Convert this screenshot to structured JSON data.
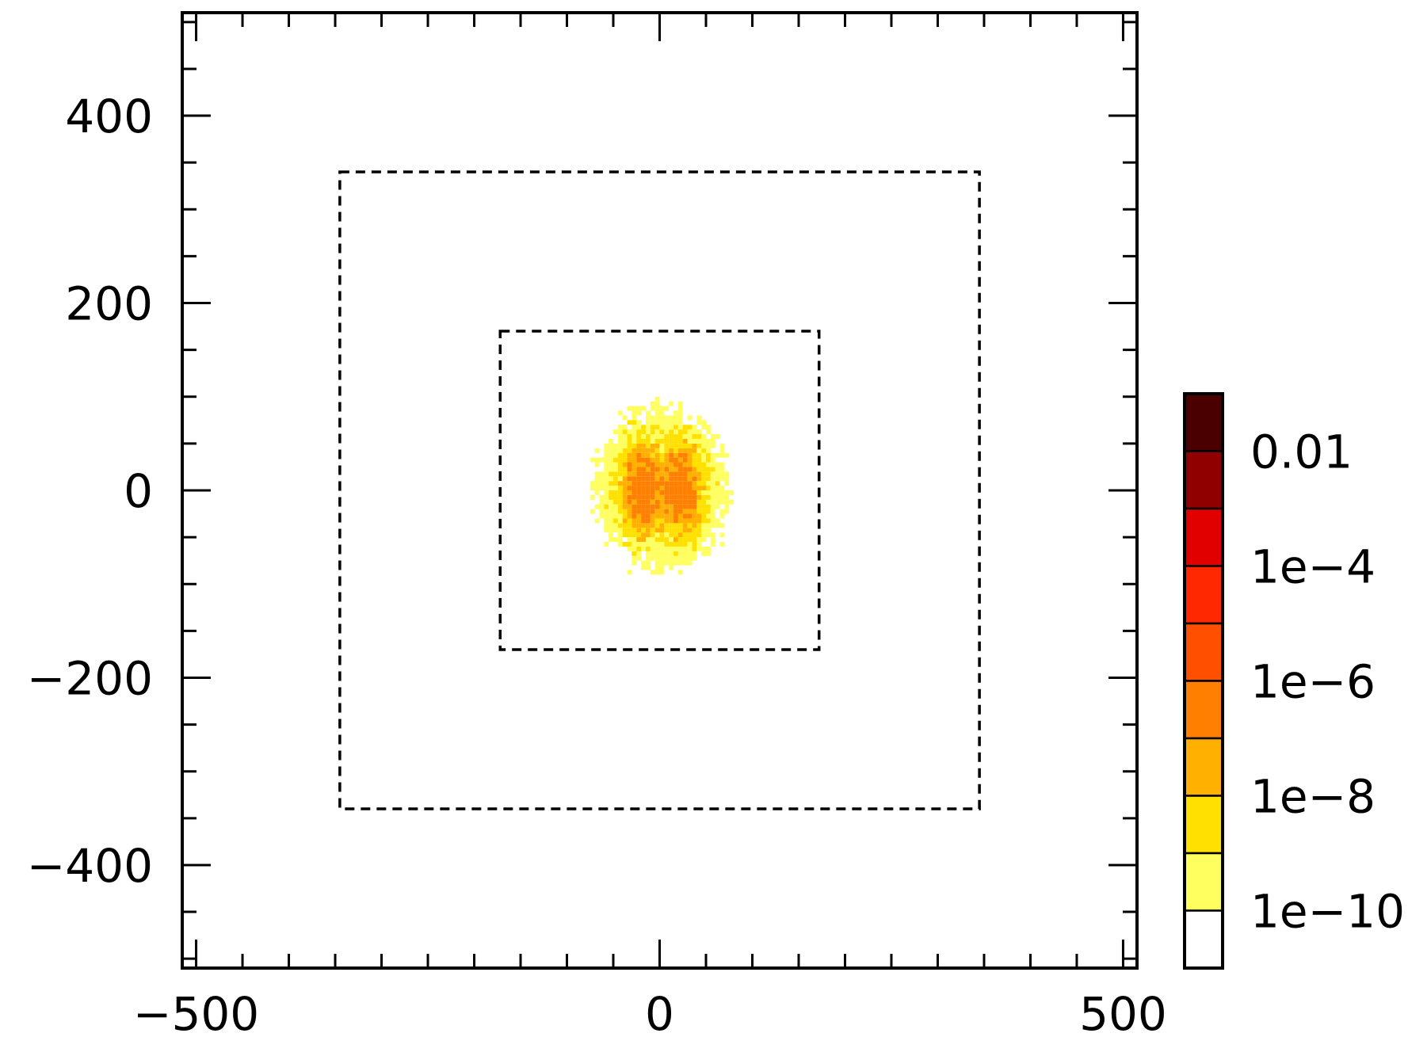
{
  "chart_data": {
    "type": "heatmap",
    "title": "",
    "xlabel": "",
    "ylabel": "",
    "xlim": [
      -515,
      515
    ],
    "ylim": [
      -510,
      510
    ],
    "x_ticks": [
      {
        "value": -500,
        "label": "−500"
      },
      {
        "value": 0,
        "label": "0"
      },
      {
        "value": 500,
        "label": "500"
      }
    ],
    "y_ticks": [
      {
        "value": 400,
        "label": "400"
      },
      {
        "value": 200,
        "label": "200"
      },
      {
        "value": 0,
        "label": "0"
      },
      {
        "value": -200,
        "label": "−200"
      },
      {
        "value": -400,
        "label": "−400"
      }
    ],
    "minor_tick_step": 50,
    "grid": false,
    "regions": [
      {
        "shape": "rectangle",
        "style": "dashed",
        "x": [
          -345,
          345
        ],
        "y": [
          -340,
          340
        ]
      },
      {
        "shape": "rectangle",
        "style": "dashed",
        "x": [
          -172,
          172
        ],
        "y": [
          -170,
          170
        ]
      }
    ],
    "density_blob": {
      "center": [
        0,
        0
      ],
      "extent_x": [
        -80,
        80
      ],
      "extent_y": [
        -95,
        95
      ],
      "peak_level": "1e-7",
      "edge_level": "1e-10"
    },
    "colorbar": {
      "scale": "log",
      "levels": [
        {
          "range": "<1e-10",
          "color": "#ffffff"
        },
        {
          "range": "1e-10 to 1e-9",
          "color": "#ffff60"
        },
        {
          "range": "1e-9 to 1e-8",
          "color": "#ffe000"
        },
        {
          "range": "1e-8 to 1e-7",
          "color": "#ffb000"
        },
        {
          "range": "1e-7 to 1e-6",
          "color": "#ff8000"
        },
        {
          "range": "1e-6 to 1e-5",
          "color": "#ff5000"
        },
        {
          "range": "1e-5 to 1e-4",
          "color": "#ff2800"
        },
        {
          "range": "1e-4 to 1e-3",
          "color": "#e00000"
        },
        {
          "range": "1e-3 to 1e-2",
          "color": "#900000"
        },
        {
          "range": ">1e-2",
          "color": "#4a0000"
        }
      ],
      "tick_labels": [
        "0.01",
        "1e−4",
        "1e−6",
        "1e−8",
        "1e−10"
      ]
    }
  }
}
